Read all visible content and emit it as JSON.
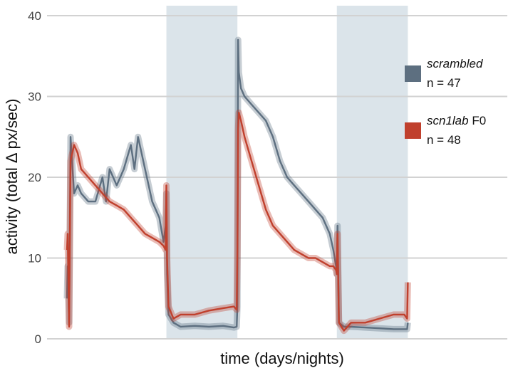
{
  "chart_data": {
    "type": "line",
    "xlabel": "time (days/nights)",
    "ylabel": "activity (total Δ px/sec)",
    "ylim": [
      0,
      40
    ],
    "yticks": [
      "0",
      "10",
      "20",
      "30",
      "40"
    ],
    "grid": true,
    "x_unit": "hours",
    "xlim": [
      0,
      60
    ],
    "night_periods": [
      [
        14,
        24
      ],
      [
        38,
        48
      ]
    ],
    "legend_position": "right",
    "series": [
      {
        "name": "scrambled",
        "suffix": "",
        "n_label": "n = 47",
        "color": "#5d6f80",
        "x": [
          0,
          0.1,
          0.3,
          0.5,
          1,
          1.5,
          2,
          3,
          4,
          5,
          5.5,
          6,
          7,
          8,
          9,
          9.5,
          10,
          11,
          12,
          13,
          13.6,
          13.9,
          14,
          14.1,
          14.3,
          15,
          16,
          18,
          20,
          22,
          23.5,
          23.9,
          24,
          24.1,
          24.2,
          24.5,
          25,
          26,
          27,
          28,
          29,
          30,
          31,
          32,
          33,
          34,
          35,
          36,
          37,
          37.5,
          37.9,
          38,
          38.1,
          38.3,
          39,
          40,
          42,
          44,
          46,
          47.5,
          47.9,
          48
        ],
        "values": [
          5,
          9,
          2,
          25,
          18,
          19,
          18,
          17,
          17,
          20,
          17,
          21,
          19,
          21,
          24,
          21,
          25,
          21,
          17,
          15,
          12,
          14,
          18,
          8,
          3,
          2,
          1.5,
          1.6,
          1.5,
          1.6,
          1.4,
          1.5,
          4,
          37,
          33,
          31,
          30,
          29,
          28,
          27,
          25,
          22,
          20,
          19,
          18,
          17,
          16,
          15,
          13,
          11,
          9,
          8,
          14,
          2,
          1.5,
          1.5,
          1.4,
          1.3,
          1.2,
          1.2,
          1.2,
          2
        ]
      },
      {
        "name": "scn1lab",
        "suffix": " F0",
        "n_label": "n = 48",
        "color": "#c0402d",
        "x": [
          0,
          0.1,
          0.3,
          0.5,
          1,
          1.5,
          2,
          3,
          4,
          5,
          6,
          7,
          8,
          9,
          10,
          11,
          12,
          13,
          13.6,
          13.9,
          14,
          14.1,
          14.3,
          15,
          16,
          18,
          20,
          22,
          23.5,
          23.9,
          24,
          24.1,
          24.2,
          24.5,
          25,
          26,
          27,
          28,
          29,
          30,
          31,
          32,
          33,
          34,
          35,
          36,
          37,
          37.5,
          37.9,
          38,
          38.1,
          38.3,
          39,
          40,
          42,
          44,
          46,
          47.5,
          47.9,
          48
        ],
        "values": [
          11,
          13,
          1.5,
          22,
          24,
          23,
          21,
          20,
          19,
          18,
          17,
          16.5,
          16,
          15,
          14,
          13,
          12.5,
          12,
          11.5,
          11,
          19,
          10,
          4,
          2.5,
          3,
          3,
          3.5,
          3.8,
          4,
          3.6,
          11,
          26,
          28,
          27,
          25,
          22,
          19,
          16,
          14,
          13,
          12,
          11,
          10.5,
          10,
          10,
          9.5,
          9,
          9,
          8.5,
          8,
          13,
          2,
          1,
          2,
          2,
          2.5,
          3,
          3,
          2.5,
          7
        ]
      }
    ]
  }
}
